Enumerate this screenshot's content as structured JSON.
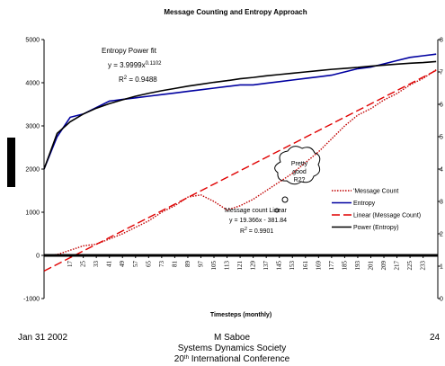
{
  "chart_data": {
    "type": "line",
    "title": "Message Counting and Entropy Approach",
    "x_label": "Timesteps (monthly)",
    "xlim": [
      1,
      242
    ],
    "xticks": [
      17,
      25,
      33,
      41,
      49,
      57,
      65,
      73,
      81,
      89,
      97,
      105,
      113,
      121,
      129,
      137,
      145,
      153,
      161,
      169,
      177,
      185,
      193,
      201,
      209,
      217,
      225,
      233
    ],
    "ylim": [
      -1000,
      5000
    ],
    "yticks": [
      -1000,
      0,
      1000,
      2000,
      3000,
      4000,
      5000
    ],
    "y2lim": [
      0,
      8
    ],
    "y2ticks": [
      0,
      1,
      2,
      3,
      4,
      5,
      6,
      7,
      8
    ],
    "x": [
      1,
      9,
      17,
      25,
      33,
      41,
      49,
      57,
      65,
      73,
      81,
      89,
      97,
      105,
      113,
      121,
      129,
      137,
      145,
      153,
      161,
      169,
      177,
      185,
      193,
      201,
      209,
      217,
      225,
      233,
      241
    ],
    "series": [
      {
        "name": "'Message Count",
        "color": "#c00000",
        "style": "dotted",
        "values": [
          0,
          20,
          120,
          220,
          260,
          380,
          500,
          650,
          800,
          1000,
          1150,
          1350,
          1400,
          1250,
          1050,
          1150,
          1300,
          1500,
          1700,
          1900,
          2150,
          2400,
          2700,
          3000,
          3250,
          3400,
          3600,
          3750,
          3950,
          4100,
          4300
        ]
      },
      {
        "name": "Entropy",
        "color": "#0000a0",
        "style": "solid",
        "axis": "y2",
        "values": [
          4.0,
          5.0,
          5.6,
          5.7,
          5.9,
          6.1,
          6.15,
          6.2,
          6.25,
          6.3,
          6.35,
          6.4,
          6.45,
          6.5,
          6.55,
          6.6,
          6.6,
          6.65,
          6.7,
          6.75,
          6.8,
          6.85,
          6.9,
          7.0,
          7.1,
          7.15,
          7.25,
          7.35,
          7.45,
          7.5,
          7.55
        ]
      },
      {
        "name": "Linear (Message Count)",
        "color": "#e00000",
        "style": "dashed",
        "x": [
          1,
          241
        ],
        "values": [
          -362.47,
          4285.37
        ]
      },
      {
        "name": "Power (Entropy)",
        "color": "#000000",
        "style": "solid",
        "axis": "y2",
        "values": [
          4.0,
          5.1,
          5.46,
          5.7,
          5.88,
          6.02,
          6.14,
          6.25,
          6.34,
          6.42,
          6.49,
          6.56,
          6.62,
          6.68,
          6.73,
          6.79,
          6.83,
          6.88,
          6.92,
          6.96,
          7.0,
          7.04,
          7.08,
          7.11,
          7.14,
          7.18,
          7.21,
          7.24,
          7.27,
          7.29,
          7.32
        ]
      }
    ],
    "annotations": [
      {
        "text": "Entropy Power fit"
      },
      {
        "text": "y = 3.9999x",
        "sup": "0.1102"
      },
      {
        "text": "R",
        "sup": "2",
        "after": " = 0.9488"
      },
      {
        "text": "Message count Linear"
      },
      {
        "text": "y = 19.366x - 381.84"
      },
      {
        "text": "R",
        "sup": "2",
        "after": " = 0.9901"
      }
    ],
    "callout": [
      "Pretty",
      "good",
      "R2?"
    ]
  },
  "footer": {
    "date": "Jan 31  2002",
    "author": "M Saboe",
    "org": "Systems Dynamics Society",
    "conf_num": "20",
    "conf_sup": "th",
    "conf_rest": " International Conference",
    "page": "24"
  }
}
